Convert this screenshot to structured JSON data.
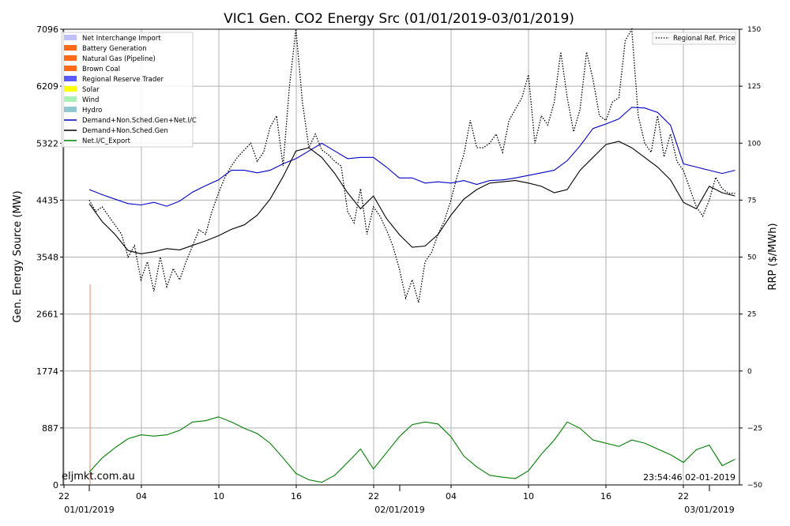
{
  "chart_data": {
    "type": "line",
    "title": "VIC1 Gen. CO2 Energy Src (01/01/2019-03/01/2019)",
    "ylabel": "Gen. Energy Source (MW)",
    "y2label": "RRP ($/MWh)",
    "ylim": [
      0,
      7096
    ],
    "y2lim": [
      -50,
      150
    ],
    "yticks": [
      "0",
      "887",
      "1774",
      "2661",
      "3548",
      "4435",
      "5322",
      "6209",
      "7096"
    ],
    "y2ticks": [
      "−50",
      "−25",
      "0",
      "25",
      "50",
      "75",
      "100",
      "125",
      "150"
    ],
    "xticks": [
      "22",
      "04",
      "10",
      "16",
      "22",
      "04",
      "10",
      "16",
      "22"
    ],
    "xdates": [
      "01/01/2019",
      "02/01/2019",
      "03/01/2019"
    ],
    "x_unit": "hours since 22:00 31/12/2018",
    "grid": true,
    "legend_left": [
      {
        "label": "Net Interchange Import",
        "color": "#c0c0ff",
        "kind": "patch"
      },
      {
        "label": "Battery Generation",
        "color": "#ff6a1a",
        "kind": "patch"
      },
      {
        "label": "Natural Gas (Pipeline)",
        "color": "#ff6a1a",
        "kind": "patch"
      },
      {
        "label": "Brown Coal",
        "color": "#ff6a1a",
        "kind": "patch"
      },
      {
        "label": "Regional Reserve Trader",
        "color": "#5a5aff",
        "kind": "patch"
      },
      {
        "label": "Solar",
        "color": "#ffff00",
        "kind": "patch"
      },
      {
        "label": "Wind",
        "color": "#a8f0b4",
        "kind": "patch"
      },
      {
        "label": "Hydro",
        "color": "#8fc8cf",
        "kind": "patch"
      },
      {
        "label": "Demand+Non.Sched.Gen+Net.I/C",
        "color": "#0000cc",
        "kind": "line"
      },
      {
        "label": "Demand+Non.Sched.Gen",
        "color": "#000000",
        "kind": "line"
      },
      {
        "label": "Net.I/C_Export",
        "color": "#008000",
        "kind": "line"
      }
    ],
    "legend_right": [
      {
        "label": "Regional Ref. Price",
        "color": "#000000",
        "kind": "dotted"
      }
    ],
    "watermark": "eljmkt.com.au",
    "timestamp": "23:54:46 02-01-2019",
    "series": [
      {
        "name": "Demand+Non.Sched.Gen+Net.I/C",
        "axis": "left",
        "color": "#0000cc",
        "x": [
          2,
          3,
          4,
          5,
          6,
          7,
          8,
          9,
          10,
          11,
          12,
          13,
          14,
          15,
          16,
          17,
          18,
          19,
          20,
          21,
          22,
          23,
          24,
          25,
          26,
          27,
          28,
          29,
          30,
          31,
          32,
          33,
          34,
          35,
          36,
          37,
          38,
          39,
          40,
          41,
          42,
          43,
          44,
          45,
          46,
          47,
          48,
          49,
          50,
          51,
          52
        ],
        "y": [
          4600,
          4520,
          4450,
          4380,
          4360,
          4400,
          4340,
          4420,
          4560,
          4660,
          4750,
          4900,
          4900,
          4860,
          4900,
          5000,
          5080,
          5200,
          5320,
          5200,
          5080,
          5100,
          5100,
          4950,
          4780,
          4780,
          4700,
          4720,
          4700,
          4740,
          4680,
          4740,
          4750,
          4780,
          4820,
          4860,
          4900,
          5050,
          5280,
          5550,
          5620,
          5700,
          5880,
          5870,
          5800,
          5600,
          5000,
          4950,
          4900,
          4850,
          4900
        ]
      },
      {
        "name": "Demand+Non.Sched.Gen",
        "axis": "left",
        "color": "#000000",
        "x": [
          2,
          3,
          4,
          5,
          6,
          7,
          8,
          9,
          10,
          11,
          12,
          13,
          14,
          15,
          16,
          17,
          18,
          19,
          20,
          21,
          22,
          23,
          24,
          25,
          26,
          27,
          28,
          29,
          30,
          31,
          32,
          33,
          34,
          35,
          36,
          37,
          38,
          39,
          40,
          41,
          42,
          43,
          44,
          45,
          46,
          47,
          48,
          49,
          50,
          51,
          52
        ],
        "y": [
          4380,
          4100,
          3900,
          3650,
          3600,
          3630,
          3680,
          3660,
          3730,
          3800,
          3880,
          3980,
          4050,
          4200,
          4450,
          4800,
          5200,
          5250,
          5100,
          4850,
          4550,
          4300,
          4500,
          4150,
          3900,
          3700,
          3720,
          3900,
          4200,
          4450,
          4600,
          4700,
          4720,
          4740,
          4700,
          4650,
          4550,
          4600,
          4900,
          5100,
          5300,
          5350,
          5250,
          5100,
          4950,
          4750,
          4400,
          4300,
          4650,
          4550,
          4500
        ]
      },
      {
        "name": "Net.I/C_Export",
        "axis": "left",
        "color": "#008000",
        "x": [
          2,
          3,
          4,
          5,
          6,
          7,
          8,
          9,
          10,
          11,
          12,
          13,
          14,
          15,
          16,
          17,
          18,
          19,
          20,
          21,
          22,
          23,
          24,
          25,
          26,
          27,
          28,
          29,
          30,
          31,
          32,
          33,
          34,
          35,
          36,
          37,
          38,
          39,
          40,
          41,
          42,
          43,
          44,
          45,
          46,
          47,
          48,
          49,
          50,
          51,
          52
        ],
        "y": [
          200,
          420,
          580,
          720,
          780,
          760,
          780,
          850,
          980,
          1000,
          1060,
          980,
          880,
          800,
          650,
          420,
          180,
          80,
          40,
          150,
          350,
          560,
          250,
          500,
          750,
          940,
          980,
          950,
          750,
          450,
          280,
          150,
          120,
          100,
          220,
          480,
          700,
          980,
          880,
          700,
          650,
          600,
          700,
          650,
          560,
          470,
          350,
          550,
          620,
          300,
          400
        ]
      },
      {
        "name": "Regional Ref. Price",
        "axis": "right",
        "color": "#000000",
        "dash": "dotted",
        "x": [
          2,
          2.5,
          3,
          3.5,
          4,
          4.5,
          5,
          5.5,
          6,
          6.5,
          7,
          7.5,
          8,
          8.5,
          9,
          9.5,
          10,
          10.5,
          11,
          11.5,
          12,
          12.5,
          13,
          13.5,
          14,
          14.5,
          15,
          15.5,
          16,
          16.5,
          17,
          17.5,
          18,
          18.5,
          19,
          19.5,
          20,
          20.5,
          21,
          21.5,
          22,
          22.5,
          23,
          23.5,
          24,
          24.5,
          25,
          25.5,
          26,
          26.5,
          27,
          27.5,
          28,
          28.5,
          29,
          29.5,
          30,
          30.5,
          31,
          31.5,
          32,
          32.5,
          33,
          33.5,
          34,
          34.5,
          35,
          35.5,
          36,
          36.5,
          37,
          37.5,
          38,
          38.5,
          39,
          39.5,
          40,
          40.5,
          41,
          41.5,
          42,
          42.5,
          43,
          43.5,
          44,
          44.5,
          45,
          45.5,
          46,
          46.5,
          47,
          47.5,
          48,
          48.5,
          49,
          49.5,
          50,
          50.5,
          51,
          51.5,
          52
        ],
        "y": [
          75,
          70,
          72,
          68,
          64,
          60,
          50,
          55,
          40,
          48,
          35,
          50,
          37,
          45,
          40,
          48,
          55,
          62,
          60,
          70,
          78,
          85,
          90,
          94,
          97,
          100,
          92,
          96,
          107,
          112,
          90,
          125,
          150,
          118,
          98,
          104,
          97,
          95,
          92,
          90,
          70,
          65,
          80,
          60,
          72,
          68,
          62,
          55,
          45,
          32,
          40,
          30,
          48,
          52,
          60,
          66,
          75,
          86,
          95,
          110,
          98,
          98,
          100,
          104,
          96,
          110,
          115,
          120,
          130,
          100,
          112,
          108,
          118,
          140,
          120,
          105,
          115,
          140,
          128,
          112,
          110,
          118,
          120,
          145,
          150,
          112,
          100,
          96,
          112,
          94,
          104,
          92,
          88,
          80,
          72,
          68,
          75,
          85,
          80,
          78,
          78
        ]
      }
    ]
  }
}
